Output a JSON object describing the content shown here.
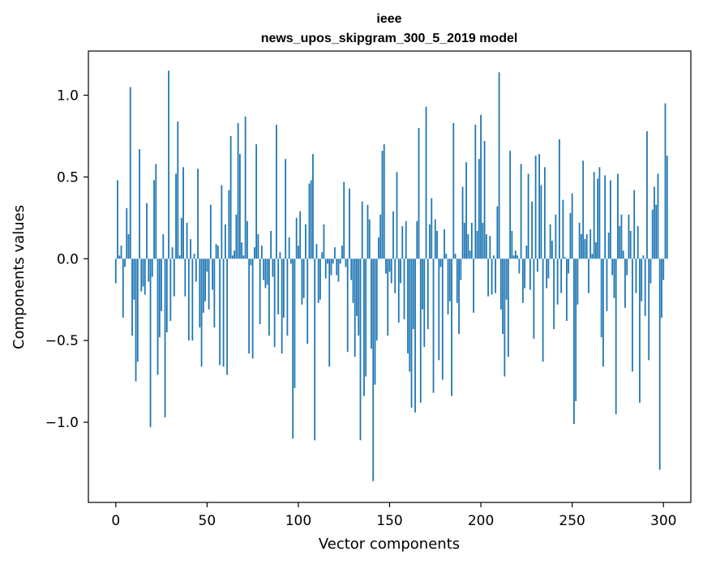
{
  "chart_data": {
    "type": "bar",
    "title_line1": "ieee",
    "title_line2": "news_upos_skipgram_300_5_2019 model",
    "xlabel": "Vector components",
    "ylabel": "Components values",
    "xlim": [
      -15,
      315
    ],
    "ylim": [
      -1.49,
      1.27
    ],
    "x_ticks": [
      0,
      50,
      100,
      150,
      200,
      250,
      300
    ],
    "x_tick_labels": [
      "0",
      "50",
      "100",
      "150",
      "200",
      "250",
      "300"
    ],
    "y_ticks": [
      -1.0,
      -0.5,
      0.0,
      0.5,
      1.0
    ],
    "y_tick_labels": [
      "−1.0",
      "−0.5",
      "0.0",
      "0.5",
      "1.0"
    ],
    "bar_color": "#1f77b4",
    "values": [
      -0.15,
      0.48,
      0.02,
      0.08,
      -0.36,
      -0.05,
      0.31,
      0.15,
      1.05,
      -0.47,
      -0.25,
      -0.75,
      -0.63,
      0.67,
      -0.2,
      -0.17,
      -0.22,
      0.34,
      -0.14,
      -1.03,
      -0.11,
      0.48,
      0.58,
      -0.71,
      -0.48,
      -0.32,
      0.15,
      -0.97,
      -0.45,
      1.15,
      -0.38,
      0.07,
      -0.23,
      0.52,
      0.84,
      0.02,
      0.25,
      0.56,
      -0.23,
      0.22,
      -0.5,
      0.12,
      -0.5,
      0.03,
      -0.14,
      0.55,
      -0.42,
      -0.66,
      -0.33,
      -0.26,
      -0.08,
      -0.31,
      0.33,
      -0.19,
      -0.42,
      0.09,
      0.08,
      -0.65,
      0.45,
      -0.66,
      0.21,
      -0.71,
      0.42,
      0.75,
      0.02,
      0.05,
      0.27,
      0.83,
      0.64,
      0.1,
      0.02,
      0.87,
      0.23,
      -0.58,
      -0.04,
      -0.61,
      0.07,
      0.7,
      0.15,
      -0.4,
      0.08,
      -0.13,
      -0.18,
      -0.16,
      -0.47,
      0.17,
      -0.11,
      -0.54,
      0.82,
      -0.34,
      0.04,
      -0.58,
      -0.36,
      0.61,
      -0.47,
      0.13,
      -0.03,
      -1.1,
      -0.79,
      0.25,
      0.08,
      0.29,
      -0.28,
      -0.24,
      0.21,
      -0.52,
      0.46,
      0.48,
      0.64,
      -1.11,
      0.09,
      -0.27,
      -0.25,
      0.04,
      0.21,
      -0.12,
      -0.03,
      -0.66,
      -0.1,
      -0.03,
      0.07,
      -0.1,
      -0.14,
      -0.03,
      0.08,
      0.47,
      -0.05,
      -0.57,
      0.43,
      -0.13,
      -0.27,
      -0.6,
      -0.35,
      -0.47,
      -1.11,
      0.35,
      -0.84,
      -0.72,
      0.33,
      0.24,
      -0.55,
      -1.36,
      -0.77,
      -0.5,
      0.13,
      0.27,
      0.66,
      0.7,
      -0.09,
      -0.47,
      -0.08,
      -0.15,
      0.29,
      -0.21,
      0.53,
      -0.39,
      -0.15,
      0.2,
      -0.37,
      0.23,
      -0.58,
      -0.69,
      -0.91,
      -0.43,
      -0.94,
      0.23,
      0.8,
      -0.88,
      -0.31,
      -0.54,
      0.93,
      -0.43,
      0.21,
      0.37,
      -0.82,
      0.24,
      0.17,
      -0.62,
      -0.05,
      -0.74,
      0.18,
      0.03,
      -0.34,
      -0.26,
      -0.84,
      0.83,
      0.03,
      -0.27,
      -0.46,
      -0.13,
      0.44,
      0.22,
      0.59,
      0.15,
      0.05,
      0.22,
      -0.33,
      0.82,
      0.17,
      0.61,
      0.88,
      0.22,
      0.72,
      0.15,
      -0.23,
      0.14,
      -0.22,
      0.02,
      -0.21,
      0.32,
      1.14,
      -0.31,
      -0.46,
      -0.72,
      -0.25,
      -0.6,
      0.66,
      0.17,
      0.02,
      0.05,
      0.02,
      -0.09,
      0.58,
      -0.27,
      -0.18,
      0.08,
      0.52,
      -0.19,
      0.35,
      -0.49,
      0.63,
      -0.08,
      0.64,
      0.45,
      -0.63,
      0.56,
      -0.18,
      -0.12,
      0.21,
      0.11,
      -0.43,
      0.27,
      -0.28,
      0.73,
      -0.21,
      0.36,
      0.01,
      -0.38,
      -0.09,
      0.28,
      0.4,
      -1.01,
      -0.87,
      -0.28,
      0.22,
      0.15,
      0.6,
      0.12,
      0.15,
      -0.21,
      0.18,
      0.03,
      0.53,
      0.1,
      0.49,
      0.56,
      -0.48,
      -0.66,
      0.51,
      -0.32,
      0.16,
      0.48,
      -0.1,
      -0.24,
      -0.95,
      0.52,
      0.2,
      0.27,
      0.05,
      -0.3,
      -0.1,
      0.27,
      0.17,
      -0.69,
      0.42,
      -0.21,
      0.2,
      -0.88,
      -0.26,
      0.02,
      -0.35,
      0.78,
      -0.62,
      -0.15,
      0.3,
      0.44,
      0.33,
      0.52,
      -1.29,
      -0.36,
      -0.13,
      0.95,
      0.63
    ]
  }
}
